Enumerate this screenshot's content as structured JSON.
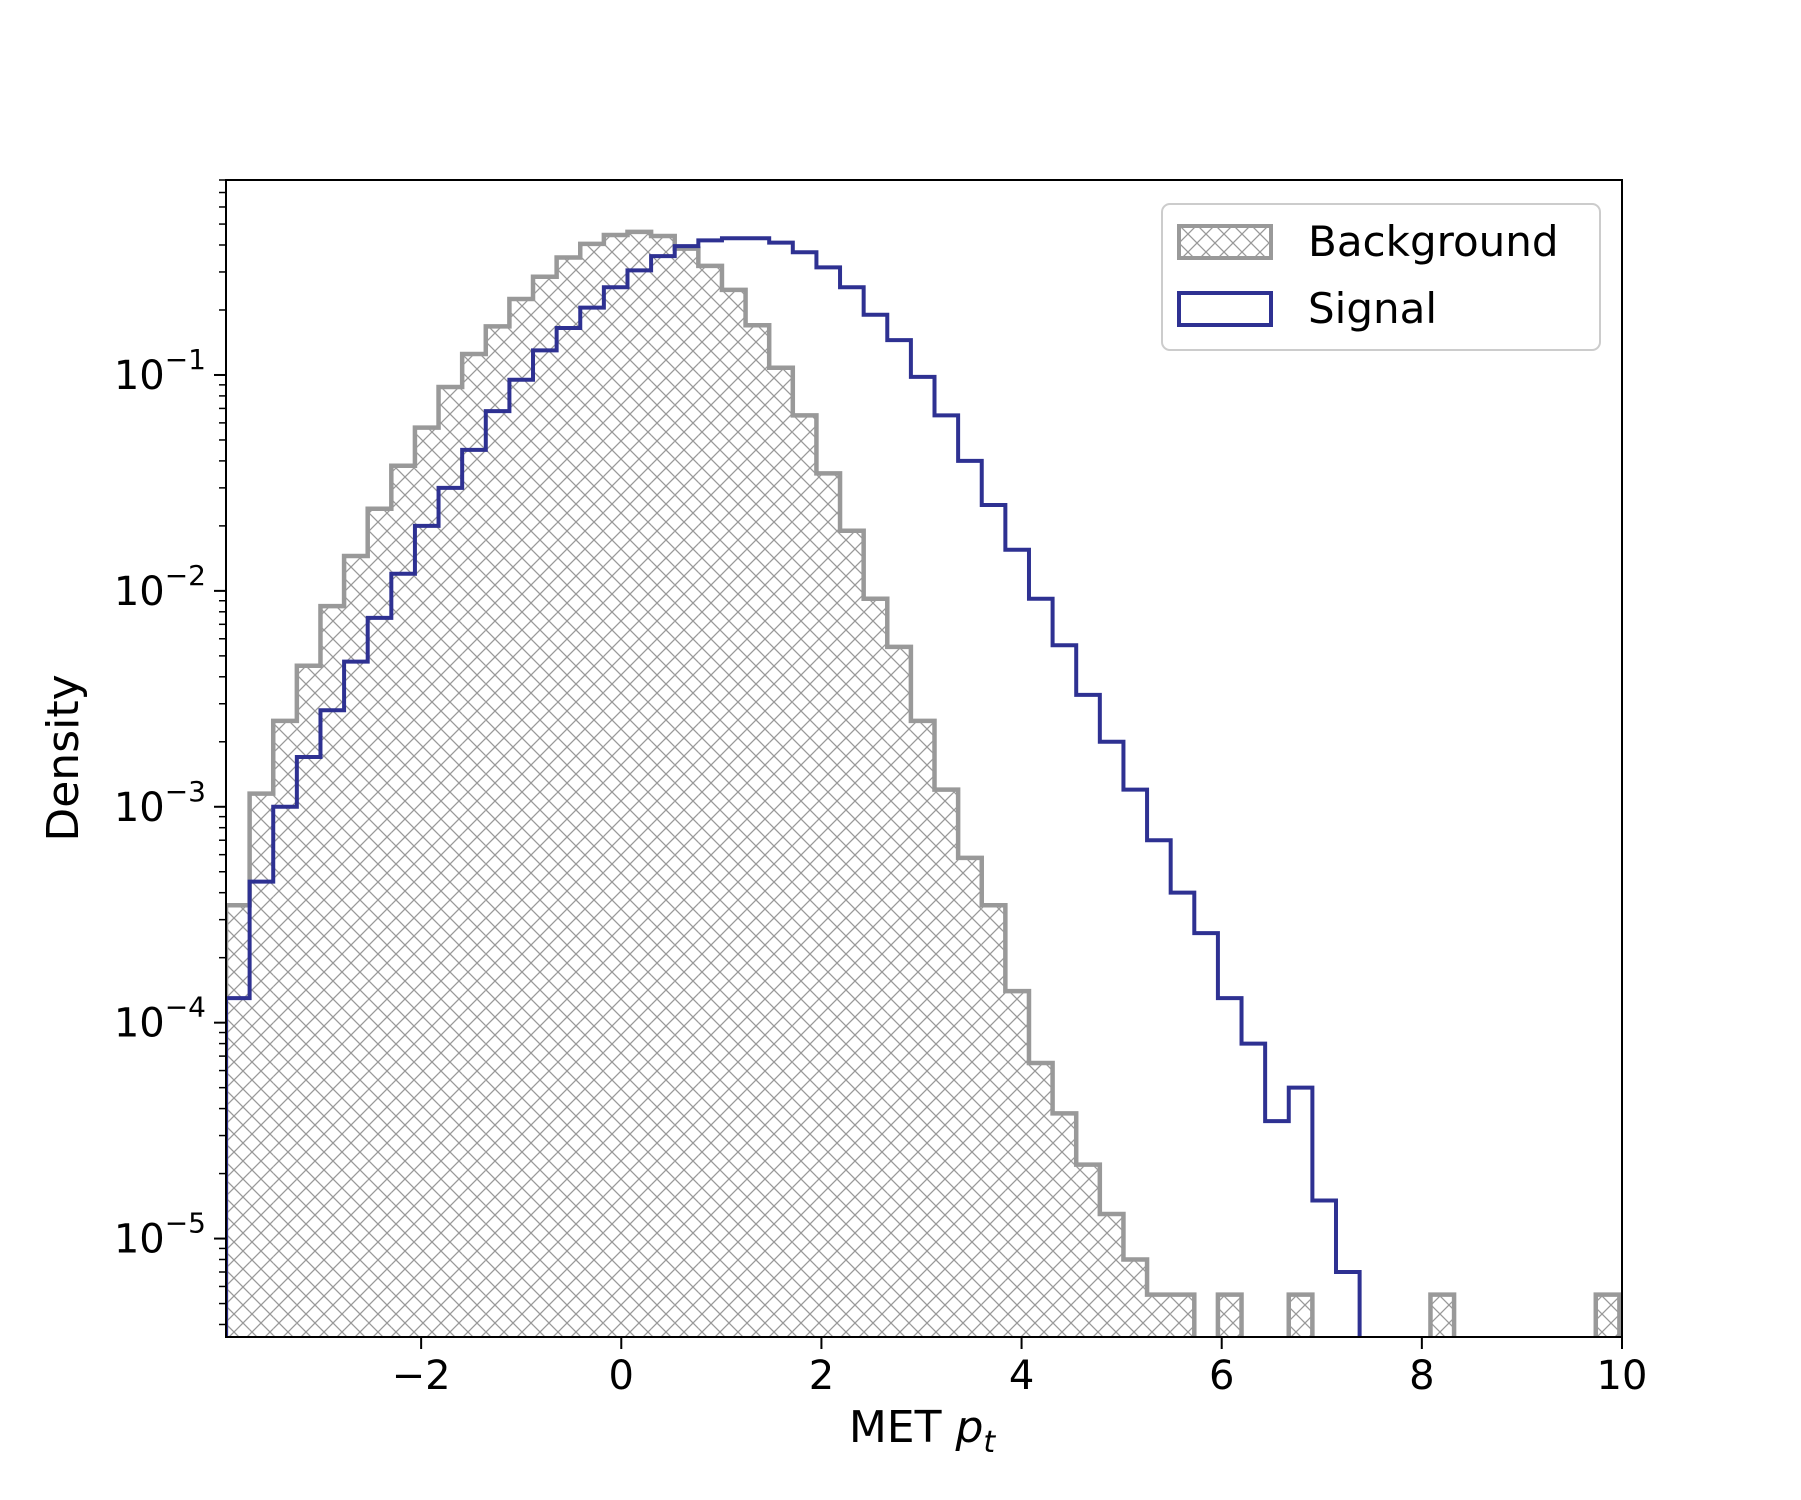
{
  "chart_data": {
    "type": "histogram",
    "yscale": "log",
    "xlim": [
      -3.95,
      10.0
    ],
    "ylim": [
      3.5e-06,
      0.8
    ],
    "xlabel": "MET",
    "xlabel_symbol": "p",
    "xlabel_subscript": "t",
    "ylabel": "Density",
    "x_ticks": [
      {
        "value": -2,
        "label": "−2"
      },
      {
        "value": 0,
        "label": "0"
      },
      {
        "value": 2,
        "label": "2"
      },
      {
        "value": 4,
        "label": "4"
      },
      {
        "value": 6,
        "label": "6"
      },
      {
        "value": 8,
        "label": "8"
      },
      {
        "value": 10,
        "label": "10"
      }
    ],
    "y_ticks": [
      {
        "value": 0.1,
        "base": "10",
        "exp": "−1"
      },
      {
        "value": 0.01,
        "base": "10",
        "exp": "−2"
      },
      {
        "value": 0.001,
        "base": "10",
        "exp": "−3"
      },
      {
        "value": 0.0001,
        "base": "10",
        "exp": "−4"
      },
      {
        "value": 1e-05,
        "base": "10",
        "exp": "−5"
      }
    ],
    "grid": false,
    "legend_position": "top-right",
    "bin_edge_start": -3.95,
    "bin_width": 0.236,
    "series": [
      {
        "name": "Background",
        "color": "#999999",
        "style": "hatched",
        "values": [
          0.00035,
          0.00115,
          0.0025,
          0.0045,
          0.0085,
          0.0145,
          0.024,
          0.038,
          0.057,
          0.088,
          0.125,
          0.168,
          0.225,
          0.285,
          0.35,
          0.405,
          0.445,
          0.46,
          0.44,
          0.385,
          0.32,
          0.248,
          0.17,
          0.108,
          0.065,
          0.035,
          0.019,
          0.0092,
          0.0055,
          0.0025,
          0.0012,
          0.00058,
          0.00035,
          0.00014,
          6.5e-05,
          3.8e-05,
          2.2e-05,
          1.3e-05,
          8e-06,
          5.5e-06,
          5.5e-06,
          0,
          5.5e-06,
          0,
          0,
          5.5e-06,
          0,
          0,
          0,
          0,
          0,
          5.5e-06,
          0,
          0,
          0,
          0,
          0,
          0,
          5.5e-06
        ]
      },
      {
        "name": "Signal",
        "color": "#2e3192",
        "style": "step",
        "values": [
          0.00013,
          0.00045,
          0.001,
          0.0017,
          0.0028,
          0.0047,
          0.0075,
          0.012,
          0.02,
          0.03,
          0.045,
          0.068,
          0.095,
          0.13,
          0.165,
          0.205,
          0.255,
          0.305,
          0.355,
          0.395,
          0.42,
          0.43,
          0.43,
          0.41,
          0.37,
          0.315,
          0.255,
          0.19,
          0.145,
          0.098,
          0.065,
          0.04,
          0.025,
          0.0155,
          0.0092,
          0.0056,
          0.0033,
          0.002,
          0.0012,
          0.0007,
          0.0004,
          0.00026,
          0.00013,
          8e-05,
          3.5e-05,
          5e-05,
          1.5e-05,
          7e-06
        ]
      }
    ]
  }
}
